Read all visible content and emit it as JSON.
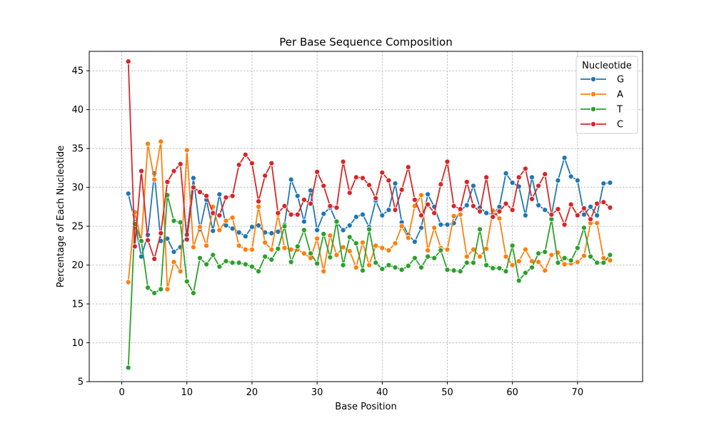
{
  "chart_data": {
    "type": "line",
    "title": "Per Base Sequence Composition",
    "xlabel": "Base Position",
    "ylabel": "Percentage of Each Nucleotide",
    "xlim": [
      -5,
      80
    ],
    "ylim": [
      5,
      47.5
    ],
    "xticks": [
      0,
      10,
      20,
      30,
      40,
      50,
      60,
      70
    ],
    "yticks": [
      5,
      10,
      15,
      20,
      25,
      30,
      35,
      40,
      45
    ],
    "grid": true,
    "legend": {
      "title": "Nucleotide",
      "placement": "top-right"
    },
    "x": [
      1,
      2,
      3,
      4,
      5,
      6,
      7,
      8,
      9,
      10,
      11,
      12,
      13,
      14,
      15,
      16,
      17,
      18,
      19,
      20,
      21,
      22,
      23,
      24,
      25,
      26,
      27,
      28,
      29,
      30,
      31,
      32,
      33,
      34,
      35,
      36,
      37,
      38,
      39,
      40,
      41,
      42,
      43,
      44,
      45,
      46,
      47,
      48,
      49,
      50,
      51,
      52,
      53,
      54,
      55,
      56,
      57,
      58,
      59,
      60,
      61,
      62,
      63,
      64,
      65,
      66,
      67,
      68,
      69,
      70,
      71,
      72,
      73,
      74,
      75
    ],
    "series": [
      {
        "name": "G",
        "color": "#1f77b4",
        "values": [
          29.2,
          25.5,
          21.1,
          23.9,
          31.8,
          23.1,
          23.4,
          21.7,
          22.3,
          23.9,
          31.2,
          24.6,
          28.4,
          24.4,
          29.1,
          25.1,
          24.7,
          24.2,
          23.7,
          24.9,
          25.1,
          24.2,
          24.1,
          24.3,
          25.2,
          31.0,
          28.9,
          25.6,
          29.6,
          24.5,
          26.6,
          27.4,
          25.5,
          24.5,
          25.1,
          26.2,
          26.5,
          24.9,
          28.3,
          26.4,
          27.1,
          30.5,
          25.5,
          23.9,
          23.0,
          24.8,
          29.1,
          27.5,
          25.2,
          25.2,
          25.4,
          27.0,
          27.7,
          30.2,
          27.4,
          26.7,
          26.5,
          27.5,
          31.8,
          30.6,
          30.1,
          26.4,
          31.3,
          27.7,
          27.1,
          26.4,
          30.9,
          33.8,
          31.4,
          30.9,
          26.5,
          27.5,
          26.4,
          30.5,
          30.6
        ]
      },
      {
        "name": "A",
        "color": "#ff7f0e",
        "values": [
          17.8,
          26.8,
          23.1,
          35.6,
          31.0,
          35.9,
          16.9,
          20.4,
          19.2,
          34.8,
          22.3,
          24.9,
          22.5,
          27.5,
          24.5,
          25.7,
          26.1,
          22.5,
          22.0,
          22.0,
          27.5,
          22.9,
          22.0,
          26.5,
          22.2,
          22.0,
          22.0,
          21.5,
          20.9,
          23.4,
          19.2,
          23.8,
          21.3,
          22.3,
          21.8,
          19.7,
          22.9,
          20.0,
          22.5,
          22.2,
          21.9,
          22.8,
          25.0,
          23.5,
          27.6,
          29.0,
          21.9,
          24.8,
          22.2,
          22.0,
          26.3,
          26.5,
          21.1,
          22.0,
          21.1,
          22.1,
          27.0,
          26.0,
          21.1,
          20.0,
          20.5,
          22.0,
          20.5,
          20.4,
          19.3,
          21.3,
          21.6,
          20.1,
          20.2,
          20.4,
          21.2,
          25.4,
          25.4,
          20.9,
          20.6
        ]
      },
      {
        "name": "T",
        "color": "#2ca02c",
        "values": [
          6.8,
          25.3,
          23.1,
          17.1,
          16.4,
          16.9,
          29.0,
          25.7,
          25.5,
          17.9,
          16.4,
          20.9,
          20.1,
          21.3,
          19.8,
          20.5,
          20.3,
          20.3,
          20.1,
          19.8,
          19.2,
          21.1,
          20.7,
          22.1,
          25.0,
          20.4,
          22.4,
          24.5,
          21.5,
          20.2,
          24.0,
          21.0,
          25.6,
          20.0,
          23.6,
          22.8,
          19.3,
          24.6,
          20.3,
          19.5,
          20.0,
          19.7,
          19.4,
          19.9,
          20.9,
          19.7,
          21.1,
          20.9,
          21.9,
          19.4,
          19.3,
          19.2,
          20.3,
          20.3,
          24.6,
          20.0,
          19.6,
          19.6,
          19.2,
          22.5,
          18.0,
          19.0,
          19.7,
          21.5,
          21.7,
          25.9,
          20.3,
          20.9,
          20.6,
          22.2,
          24.8,
          21.1,
          20.3,
          20.3,
          21.3
        ]
      },
      {
        "name": "C",
        "color": "#d62728",
        "values": [
          46.2,
          22.4,
          32.1,
          23.2,
          20.8,
          24.1,
          30.7,
          32.1,
          33.0,
          23.3,
          30.0,
          29.4,
          28.9,
          26.7,
          26.4,
          28.7,
          28.9,
          32.9,
          34.2,
          33.1,
          28.2,
          31.5,
          33.1,
          26.7,
          27.6,
          26.5,
          26.5,
          28.4,
          27.9,
          32.0,
          30.2,
          27.6,
          27.4,
          33.3,
          29.3,
          31.3,
          31.2,
          30.3,
          28.6,
          31.9,
          30.9,
          27.1,
          29.7,
          32.6,
          28.4,
          26.4,
          27.8,
          26.7,
          30.4,
          33.3,
          27.6,
          27.2,
          30.7,
          27.6,
          26.9,
          31.3,
          26.2,
          26.9,
          27.9,
          27.1,
          31.3,
          32.4,
          28.5,
          30.2,
          31.7,
          26.5,
          27.2,
          25.2,
          27.8,
          26.4,
          27.3,
          25.9,
          27.9,
          28.1,
          27.4
        ]
      }
    ]
  }
}
